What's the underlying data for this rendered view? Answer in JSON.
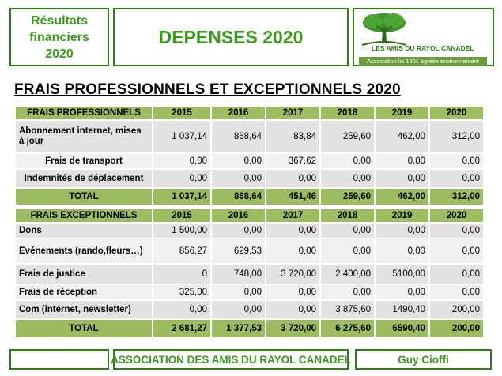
{
  "header": {
    "left_lines": [
      "Résultats",
      "financiers",
      "2020"
    ],
    "title": "DEPENSES  2020",
    "logo_text": "LES AMIS DU RAYOL CANADEL",
    "logo_sub": "Association loi 1901 agréée environnement"
  },
  "section_title": "FRAIS PROFESSIONNELS ET EXCEPTIONNELS  2020",
  "years": [
    "2015",
    "2016",
    "2017",
    "2018",
    "2019",
    "2020"
  ],
  "table_pro": {
    "header": "FRAIS PROFESSIONNELS",
    "rows": [
      {
        "label": "Abonnement internet, mises à jour",
        "values": [
          "1 037,14",
          "868,64",
          "83,84",
          "259,60",
          "462,00",
          "312,00"
        ]
      },
      {
        "label": "Frais de transport",
        "values": [
          "0,00",
          "0,00",
          "367,62",
          "0,00",
          "0,00",
          "0,00"
        ]
      },
      {
        "label": "Indemnités de déplacement",
        "values": [
          "0,00",
          "0,00",
          "0,00",
          "0,00",
          "0,00",
          "0,00"
        ]
      }
    ],
    "total": {
      "label": "TOTAL",
      "values": [
        "1 037,14",
        "868,64",
        "451,46",
        "259,60",
        "462,00",
        "312,00"
      ]
    }
  },
  "table_exc": {
    "header": "FRAIS EXCEPTIONNELS",
    "rows": [
      {
        "label": "Dons",
        "values": [
          "1 500,00",
          "0,00",
          "0,00",
          "0,00",
          "0,00",
          "0,00"
        ]
      },
      {
        "label": "Evénements (rando,fleurs…)",
        "values": [
          "856,27",
          "629,53",
          "0,00",
          "0,00",
          "0,00",
          "0,00"
        ]
      },
      {
        "label": "Frais de justice",
        "values": [
          "0",
          "748,00",
          "3 720,00",
          "2 400,00",
          "5100,00",
          "0,00"
        ]
      },
      {
        "label": "Frais de réception",
        "values": [
          "325,00",
          "0,00",
          "0,00",
          "0,00",
          "0,00",
          "0,00"
        ]
      },
      {
        "label": "Com (internet, newsletter)",
        "values": [
          "0,00",
          "0,00",
          "0,00",
          "3 875,60",
          "1490,40",
          "200,00"
        ]
      }
    ],
    "total": {
      "label": "TOTAL",
      "values": [
        "2 681,27",
        "1 377,53",
        "3 720,00",
        "6 275,60",
        "6590,40",
        "200,00"
      ]
    }
  },
  "footer": {
    "association": "ASSOCIATION DES AMIS DU RAYOL CANADEL",
    "author": "Guy Cioffi"
  }
}
